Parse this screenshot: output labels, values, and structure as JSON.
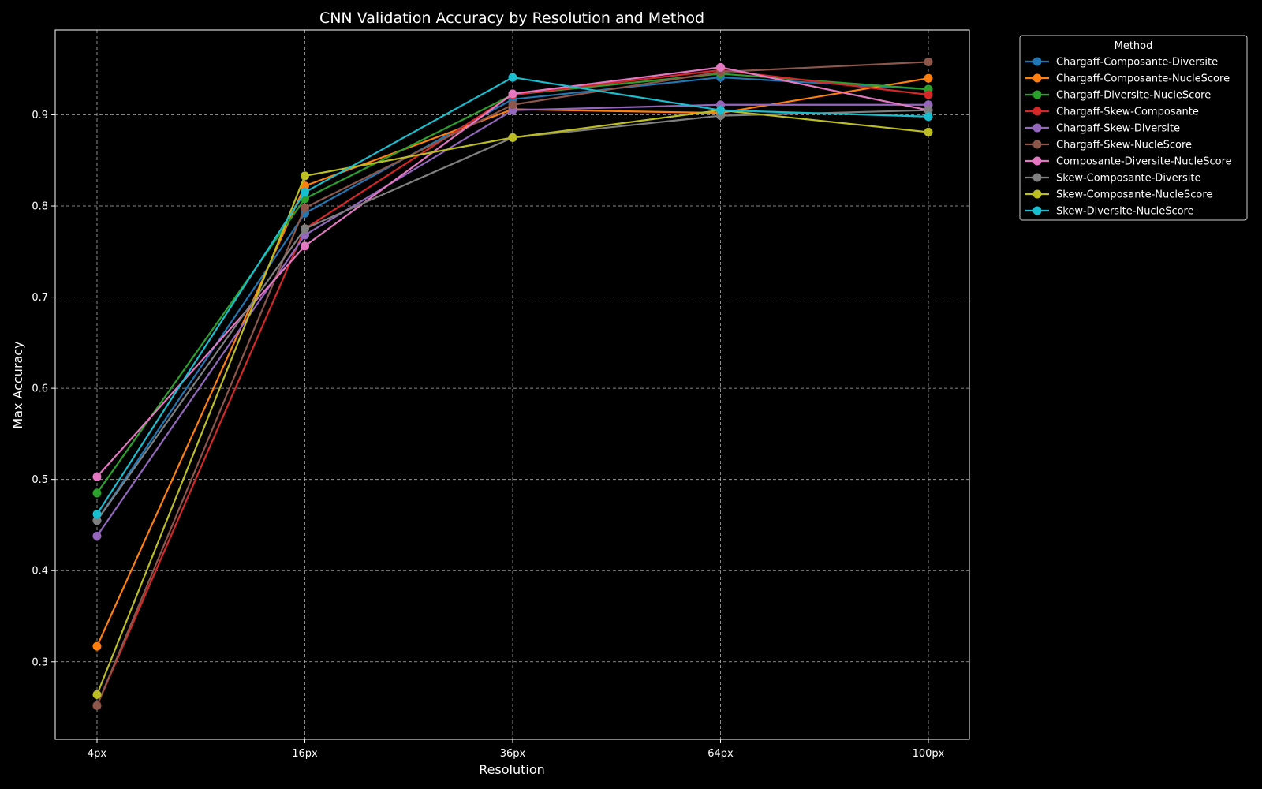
{
  "chart_data": {
    "type": "line",
    "title": "CNN Validation Accuracy by Resolution and Method",
    "xlabel": "Resolution",
    "ylabel": "Max Accuracy",
    "categories": [
      "4px",
      "16px",
      "36px",
      "64px",
      "100px"
    ],
    "ylim": [
      0.215,
      0.993
    ],
    "yticks": [
      "0.3",
      "0.4",
      "0.5",
      "0.6",
      "0.7",
      "0.8",
      "0.9"
    ],
    "grid": true,
    "legend": {
      "title": "Method",
      "placement": "outside-top-right"
    },
    "series": [
      {
        "name": "Chargaff-Composante-Diversite",
        "color": "#1f77b4",
        "values": [
          0.455,
          0.792,
          0.917,
          0.941,
          0.928
        ]
      },
      {
        "name": "Chargaff-Composante-NucleScore",
        "color": "#ff7f0e",
        "values": [
          0.317,
          0.822,
          0.906,
          0.902,
          0.94
        ]
      },
      {
        "name": "Chargaff-Diversite-NucleScore",
        "color": "#2ca02c",
        "values": [
          0.485,
          0.808,
          0.922,
          0.945,
          0.928
        ]
      },
      {
        "name": "Chargaff-Skew-Composante",
        "color": "#d62728",
        "values": [
          0.252,
          0.775,
          0.922,
          0.949,
          0.922
        ]
      },
      {
        "name": "Chargaff-Skew-Diversite",
        "color": "#9467bd",
        "values": [
          0.438,
          0.768,
          0.905,
          0.911,
          0.911
        ]
      },
      {
        "name": "Chargaff-Skew-NucleScore",
        "color": "#8c564b",
        "values": [
          0.252,
          0.798,
          0.911,
          0.947,
          0.958
        ]
      },
      {
        "name": "Composante-Diversite-NucleScore",
        "color": "#e377c2",
        "values": [
          0.503,
          0.756,
          0.923,
          0.952,
          0.905
        ]
      },
      {
        "name": "Skew-Composante-Diversite",
        "color": "#7f7f7f",
        "values": [
          0.455,
          0.775,
          0.875,
          0.899,
          0.905
        ]
      },
      {
        "name": "Skew-Composante-NucleScore",
        "color": "#bcbd22",
        "values": [
          0.264,
          0.833,
          0.875,
          0.905,
          0.881
        ]
      },
      {
        "name": "Skew-Diversite-NucleScore",
        "color": "#17becf",
        "values": [
          0.462,
          0.815,
          0.941,
          0.905,
          0.898
        ]
      }
    ]
  }
}
